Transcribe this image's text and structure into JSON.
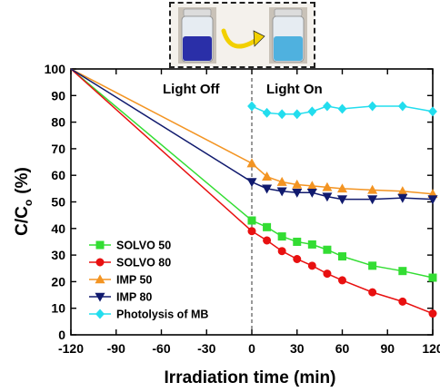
{
  "chart_data": {
    "type": "line",
    "xlabel": "Irradiation time (min)",
    "ylabel": "C/C",
    "ylabel_sub": "o",
    "ylabel_unit": "(%)",
    "xlim": [
      -120,
      120
    ],
    "ylim": [
      0,
      100
    ],
    "xticks": [
      -120,
      -90,
      -60,
      -30,
      0,
      30,
      60,
      90,
      120
    ],
    "yticks": [
      0,
      10,
      20,
      30,
      40,
      50,
      60,
      70,
      80,
      90,
      100
    ],
    "divider_x": 0,
    "annotations": {
      "left": "Light Off",
      "right": "Light On"
    },
    "legend_position": "bottom-left",
    "series": [
      {
        "name": "SOLVO 50",
        "color": "#33dd33",
        "marker": "square",
        "x": [
          -120,
          0,
          10,
          20,
          30,
          40,
          50,
          60,
          80,
          100,
          120
        ],
        "y": [
          100,
          43,
          40.5,
          37,
          35,
          34,
          32,
          29.5,
          26,
          24,
          21.5
        ]
      },
      {
        "name": "SOLVO 80",
        "color": "#e81010",
        "marker": "circle",
        "x": [
          -120,
          0,
          10,
          20,
          30,
          40,
          50,
          60,
          80,
          100,
          120
        ],
        "y": [
          100,
          39,
          35.5,
          31.5,
          28.5,
          26,
          23,
          20.5,
          16,
          12.5,
          8
        ]
      },
      {
        "name": "IMP 50",
        "color": "#f39422",
        "marker": "triangle-up",
        "x": [
          -120,
          0,
          10,
          20,
          30,
          40,
          50,
          60,
          80,
          100,
          120
        ],
        "y": [
          100,
          64.5,
          59.5,
          57.5,
          56.5,
          56,
          55.5,
          55,
          54.5,
          54,
          53
        ]
      },
      {
        "name": "IMP 80",
        "color": "#101a6e",
        "marker": "triangle-down",
        "x": [
          -120,
          0,
          10,
          20,
          30,
          40,
          50,
          60,
          80,
          100,
          120
        ],
        "y": [
          100,
          57.5,
          55,
          54,
          53.5,
          53.5,
          52,
          51,
          51,
          51.5,
          51
        ]
      },
      {
        "name": "Photolysis of MB",
        "color": "#22ddee",
        "marker": "diamond",
        "x": [
          0,
          10,
          20,
          30,
          40,
          50,
          60,
          80,
          100,
          120
        ],
        "y": [
          86,
          83.5,
          83,
          83,
          84,
          86,
          85,
          86,
          86,
          84
        ]
      }
    ]
  },
  "inset": {
    "before_liquid": "#2a2fa8",
    "after_liquid": "#4fb1df",
    "arrow_color": "#f2d000"
  }
}
